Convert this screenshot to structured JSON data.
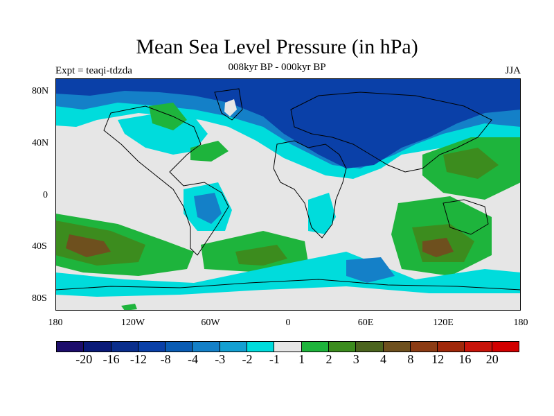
{
  "title": "Mean Sea Level Pressure (in hPa)",
  "subtitle": "008kyr BP - 000kyr BP",
  "left_label": "Expt = teaqi-tdzda",
  "right_label": "JJA",
  "axes": {
    "lat_labels": [
      "80N",
      "40N",
      "0",
      "40S",
      "80S"
    ],
    "lon_labels": [
      "180",
      "120W",
      "60W",
      "0",
      "60E",
      "120E",
      "180"
    ]
  },
  "colorbar": {
    "colors": [
      "#1d0d6b",
      "#0a1a78",
      "#0a2e8c",
      "#0a40a8",
      "#0a5cb4",
      "#1480c8",
      "#14a0d2",
      "#00dcdc",
      "#e6e6e6",
      "#1eb43c",
      "#3c8c1e",
      "#4b641e",
      "#6e501e",
      "#8c3c14",
      "#a0280a",
      "#c8140a",
      "#d20000"
    ],
    "labels": [
      "-20",
      "-16",
      "-12",
      "-8",
      "-4",
      "-3",
      "-2",
      "-1",
      "1",
      "2",
      "3",
      "4",
      "8",
      "12",
      "16",
      "20"
    ]
  }
}
